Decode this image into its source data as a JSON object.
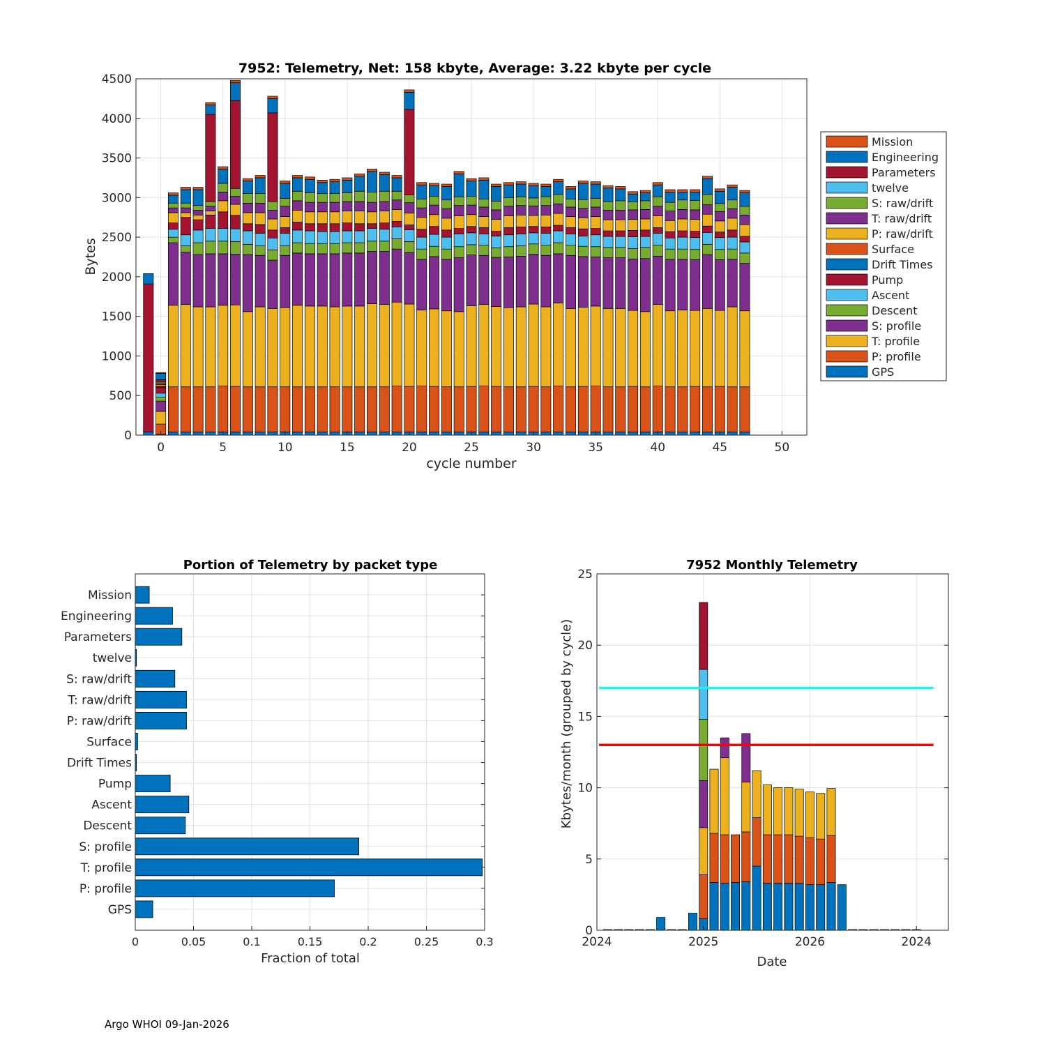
{
  "footer": "Argo WHOI 09-Jan-2026",
  "colors": {
    "blue": "#0072BD",
    "orange": "#D95319",
    "yellow": "#EDB120",
    "purple": "#7E2F8E",
    "green": "#77AC30",
    "cyan": "#4DBEEE",
    "red": "#A2142F",
    "grid": "#e3e3e3",
    "line_cyan": "#00FFFF",
    "line_red": "#FF0000"
  },
  "chart_data": [
    {
      "type": "bar",
      "stacked": true,
      "title": "7952: Telemetry, Net:    158 kbyte,  Average: 3.22 kbyte per cycle",
      "xlabel": "cycle number",
      "ylabel": "Bytes",
      "xlim": [
        -2,
        52
      ],
      "ylim": [
        0,
        4500
      ],
      "xticks": [
        0,
        5,
        10,
        15,
        20,
        25,
        30,
        35,
        40,
        45,
        50
      ],
      "yticks": [
        0,
        500,
        1000,
        1500,
        2000,
        2500,
        3000,
        3500,
        4000,
        4500
      ],
      "grid": true,
      "legend_position": "right-outside",
      "legend": [
        "Mission",
        "Engineering",
        "Parameters",
        "twelve",
        "S: raw/drift",
        "T: raw/drift",
        "P: raw/drift",
        "Surface",
        "Drift Times",
        "Pump",
        "Ascent",
        "Descent",
        "S: profile",
        "T: profile",
        "P: profile",
        "GPS"
      ],
      "stack_order": [
        "GPS",
        "P: profile",
        "T: profile",
        "S: profile",
        "Descent",
        "Ascent",
        "Pump",
        "Drift Times",
        "Surface",
        "P: raw/drift",
        "T: raw/drift",
        "S: raw/drift",
        "twelve",
        "Parameters",
        "Engineering",
        "Mission"
      ],
      "series_colors": {
        "GPS": "blue",
        "P: profile": "orange",
        "T: profile": "yellow",
        "S: profile": "purple",
        "Descent": "green",
        "Ascent": "cyan",
        "Pump": "red",
        "Drift Times": "blue",
        "Surface": "orange",
        "P: raw/drift": "yellow",
        "T: raw/drift": "purple",
        "S: raw/drift": "green",
        "twelve": "cyan",
        "Parameters": "red",
        "Engineering": "blue",
        "Mission": "orange"
      },
      "special_cycles": [
        {
          "cycle": -1,
          "segments": {
            "GPS": 40,
            "Parameters": 1870,
            "Engineering": 130
          }
        },
        {
          "cycle": 0,
          "segments": {
            "GPS": 10,
            "P: profile": 130,
            "T: profile": 160,
            "S: profile": 130,
            "Descent": 50,
            "Ascent": 50,
            "Pump": 70,
            "Drift Times": 10,
            "Surface": 10,
            "P: raw/drift": 20,
            "T: raw/drift": 10,
            "S: raw/drift": 20,
            "Parameters": 30,
            "Engineering": 80,
            "Mission": 10
          }
        }
      ],
      "cycles": [
        1,
        2,
        3,
        4,
        5,
        6,
        7,
        8,
        9,
        10,
        11,
        12,
        13,
        14,
        15,
        16,
        17,
        18,
        19,
        20,
        21,
        22,
        23,
        24,
        25,
        26,
        27,
        28,
        29,
        30,
        31,
        32,
        33,
        34,
        35,
        36,
        37,
        38,
        39,
        40,
        41,
        42,
        43,
        44,
        45,
        46,
        47
      ],
      "totals": [
        2980,
        3130,
        3130,
        4200,
        3390,
        4480,
        3240,
        3280,
        4280,
        3210,
        3280,
        3260,
        3220,
        3230,
        3250,
        3300,
        3360,
        3320,
        3280,
        4360,
        3190,
        3180,
        3170,
        3330,
        3240,
        3250,
        3170,
        3190,
        3200,
        3180,
        3170,
        3230,
        3140,
        3210,
        3200,
        3150,
        3140,
        3060,
        3090,
        3190,
        3100,
        3090,
        3100,
        3270,
        3110,
        3160,
        3090
      ],
      "p_profile": [
        570,
        570,
        570,
        570,
        580,
        575,
        570,
        570,
        570,
        570,
        570,
        570,
        570,
        570,
        570,
        570,
        570,
        570,
        580,
        575,
        580,
        575,
        570,
        570,
        575,
        580,
        575,
        570,
        570,
        575,
        570,
        580,
        570,
        575,
        580,
        570,
        570,
        575,
        570,
        580,
        570,
        570,
        575,
        570,
        575,
        570,
        570
      ],
      "t_profile": [
        1030,
        1040,
        1010,
        1010,
        1020,
        1030,
        950,
        1010,
        990,
        1000,
        1030,
        1020,
        1020,
        1010,
        1020,
        1020,
        1050,
        1040,
        1060,
        1040,
        960,
        980,
        960,
        950,
        1020,
        1030,
        1010,
        1000,
        1010,
        1040,
        1010,
        1050,
        990,
        1000,
        1010,
        990,
        990,
        960,
        950,
        1030,
        960,
        970,
        960,
        990,
        960,
        1010,
        960
      ],
      "s_profile": [
        790,
        660,
        660,
        670,
        650,
        640,
        720,
        650,
        610,
        660,
        660,
        660,
        660,
        670,
        670,
        670,
        660,
        670,
        670,
        650,
        640,
        660,
        650,
        680,
        640,
        620,
        620,
        640,
        640,
        630,
        650,
        620,
        670,
        640,
        620,
        640,
        640,
        650,
        670,
        610,
        650,
        640,
        640,
        680,
        640,
        600,
        600
      ],
      "descent": [
        70,
        80,
        150,
        160,
        160,
        160,
        130,
        120,
        130,
        120,
        130,
        130,
        130,
        130,
        130,
        130,
        130,
        130,
        130,
        140,
        130,
        130,
        130,
        140,
        130,
        130,
        120,
        130,
        130,
        130,
        130,
        140,
        130,
        130,
        130,
        130,
        130,
        130,
        140,
        140,
        130,
        130,
        130,
        130,
        130,
        130,
        130
      ],
      "ascent": [
        100,
        140,
        160,
        160,
        160,
        160,
        170,
        160,
        150,
        160,
        160,
        160,
        150,
        150,
        150,
        150,
        160,
        150,
        150,
        150,
        150,
        150,
        150,
        160,
        150,
        140,
        150,
        150,
        150,
        140,
        150,
        150,
        140,
        130,
        150,
        140,
        140,
        150,
        140,
        150,
        140,
        150,
        150,
        150,
        150,
        150,
        140
      ],
      "pump": [
        80,
        220,
        130,
        170,
        210,
        170,
        90,
        110,
        100,
        70,
        100,
        90,
        100,
        100,
        100,
        90,
        60,
        80,
        70,
        60,
        100,
        100,
        90,
        70,
        80,
        80,
        60,
        90,
        90,
        80,
        80,
        70,
        80,
        90,
        80,
        70,
        70,
        80,
        80,
        70,
        80,
        80,
        80,
        80,
        70,
        90,
        70
      ],
      "raw_p": [
        130,
        60,
        60,
        50,
        140,
        140,
        140,
        150,
        140,
        140,
        150,
        150,
        150,
        150,
        150,
        160,
        150,
        150,
        150,
        150,
        150,
        150,
        150,
        160,
        150,
        140,
        150,
        150,
        150,
        140,
        150,
        150,
        140,
        140,
        150,
        140,
        140,
        140,
        140,
        150,
        140,
        150,
        150,
        150,
        140,
        150,
        150
      ],
      "raw_t": [
        60,
        60,
        60,
        60,
        110,
        100,
        120,
        120,
        110,
        130,
        120,
        120,
        120,
        120,
        120,
        120,
        120,
        120,
        120,
        130,
        120,
        120,
        120,
        130,
        120,
        120,
        120,
        120,
        120,
        120,
        120,
        120,
        120,
        120,
        120,
        120,
        120,
        120,
        120,
        120,
        120,
        120,
        120,
        120,
        120,
        120,
        120
      ],
      "raw_s": [
        60,
        60,
        60,
        60,
        110,
        100,
        120,
        120,
        110,
        100,
        120,
        120,
        110,
        110,
        110,
        130,
        130,
        130,
        110,
        100,
        110,
        110,
        110,
        110,
        110,
        100,
        110,
        110,
        110,
        100,
        110,
        120,
        100,
        110,
        110,
        110,
        120,
        100,
        110,
        120,
        110,
        120,
        120,
        130,
        100,
        110,
        110
      ],
      "params_extra": [
        0,
        0,
        0,
        1100,
        0,
        1110,
        0,
        0,
        1120,
        0,
        0,
        0,
        0,
        0,
        0,
        0,
        0,
        0,
        0,
        1080,
        0,
        0,
        0,
        0,
        0,
        0,
        0,
        0,
        0,
        0,
        0,
        0,
        0,
        0,
        0,
        0,
        0,
        0,
        0,
        0,
        0,
        0,
        0,
        0,
        0,
        0,
        0
      ],
      "engineering": [
        100,
        110,
        100,
        100,
        100,
        100,
        100,
        100,
        100,
        100,
        100,
        100,
        100,
        100,
        100,
        100,
        100,
        100,
        100,
        100,
        100,
        100,
        100,
        100,
        100,
        100,
        100,
        100,
        100,
        100,
        100,
        100,
        100,
        100,
        100,
        100,
        100,
        100,
        100,
        100,
        100,
        100,
        100,
        100,
        100,
        100,
        100
      ],
      "mission": [
        30,
        30,
        30,
        30,
        30,
        30,
        30,
        30,
        30,
        30,
        30,
        30,
        30,
        30,
        30,
        30,
        30,
        30,
        30,
        30,
        30,
        30,
        30,
        30,
        30,
        30,
        30,
        30,
        30,
        30,
        30,
        30,
        30,
        30,
        30,
        30,
        30,
        30,
        30,
        30,
        30,
        30,
        30,
        30,
        30,
        30,
        30
      ]
    },
    {
      "type": "bar",
      "orientation": "horizontal",
      "title": "Portion of Telemetry by packet type",
      "xlabel": "Fraction of total",
      "ylabel": "",
      "xlim": [
        0,
        0.3
      ],
      "xticks": [
        0,
        0.05,
        0.1,
        0.15,
        0.2,
        0.25,
        0.3
      ],
      "xtick_labels": [
        "0",
        "0.05",
        "0.1",
        "0.15",
        "0.2",
        "0.25",
        "0.3"
      ],
      "grid": true,
      "color": "blue",
      "categories": [
        "Mission",
        "Engineering",
        "Parameters",
        "twelve",
        "S: raw/drift",
        "T: raw/drift",
        "P: raw/drift",
        "Surface",
        "Drift Times",
        "Pump",
        "Ascent",
        "Descent",
        "S: profile",
        "T: profile",
        "P: profile",
        "GPS"
      ],
      "values": [
        0.012,
        0.032,
        0.04,
        0.001,
        0.034,
        0.044,
        0.044,
        0.002,
        0.001,
        0.03,
        0.046,
        0.043,
        0.192,
        0.298,
        0.171,
        0.015
      ]
    },
    {
      "type": "bar",
      "stacked": true,
      "title": "7952 Monthly Telemetry",
      "xlabel": "Date",
      "ylabel": "Kbytes/month (grouped by cycle)",
      "ylim": [
        0,
        25
      ],
      "yticks": [
        0,
        5,
        10,
        15,
        20,
        25
      ],
      "xlim": [
        0,
        33
      ],
      "xticks": [
        0,
        10,
        20,
        30
      ],
      "xtick_labels": [
        "2024",
        "2025",
        "2026",
        "2024"
      ],
      "grid": true,
      "reference_lines": [
        {
          "y": 17,
          "color": "line_cyan"
        },
        {
          "y": 13,
          "color": "line_red"
        }
      ],
      "months": [
        1,
        2,
        3,
        4,
        5,
        6,
        7,
        8,
        9,
        10,
        11,
        12,
        13,
        14,
        15,
        16,
        17,
        18,
        19,
        20,
        21,
        22,
        23,
        24,
        25,
        26,
        27,
        28,
        29,
        30
      ],
      "segment_colors": [
        "blue",
        "orange",
        "yellow",
        "purple",
        "green",
        "cyan",
        "red"
      ],
      "stacks": [
        [
          0.05
        ],
        [
          0.05
        ],
        [
          0.05
        ],
        [
          0.05
        ],
        [
          0.05
        ],
        [
          0.9
        ],
        [
          0.05
        ],
        [
          0.05
        ],
        [
          1.2
        ],
        [
          0.8,
          3.1,
          3.3,
          3.3,
          4.3,
          3.5,
          4.7
        ],
        [
          3.35,
          3.45,
          4.5
        ],
        [
          3.3,
          3.4,
          5.4,
          1.4
        ],
        [
          3.35,
          3.35
        ],
        [
          3.4,
          3.5,
          3.5,
          3.4
        ],
        [
          4.5,
          3.4,
          3.3
        ],
        [
          3.3,
          3.4,
          3.5
        ],
        [
          3.3,
          3.4,
          3.3
        ],
        [
          3.3,
          3.4,
          3.3
        ],
        [
          3.3,
          3.3,
          3.3
        ],
        [
          3.2,
          3.3,
          3.2
        ],
        [
          3.2,
          3.2,
          3.2
        ],
        [
          3.35,
          3.3,
          3.3
        ],
        [
          3.2
        ],
        [
          0.05
        ],
        [
          0.05
        ],
        [
          0.05
        ],
        [
          0.05
        ],
        [
          0.05
        ],
        [
          0.05
        ],
        [
          0.05
        ]
      ]
    }
  ]
}
